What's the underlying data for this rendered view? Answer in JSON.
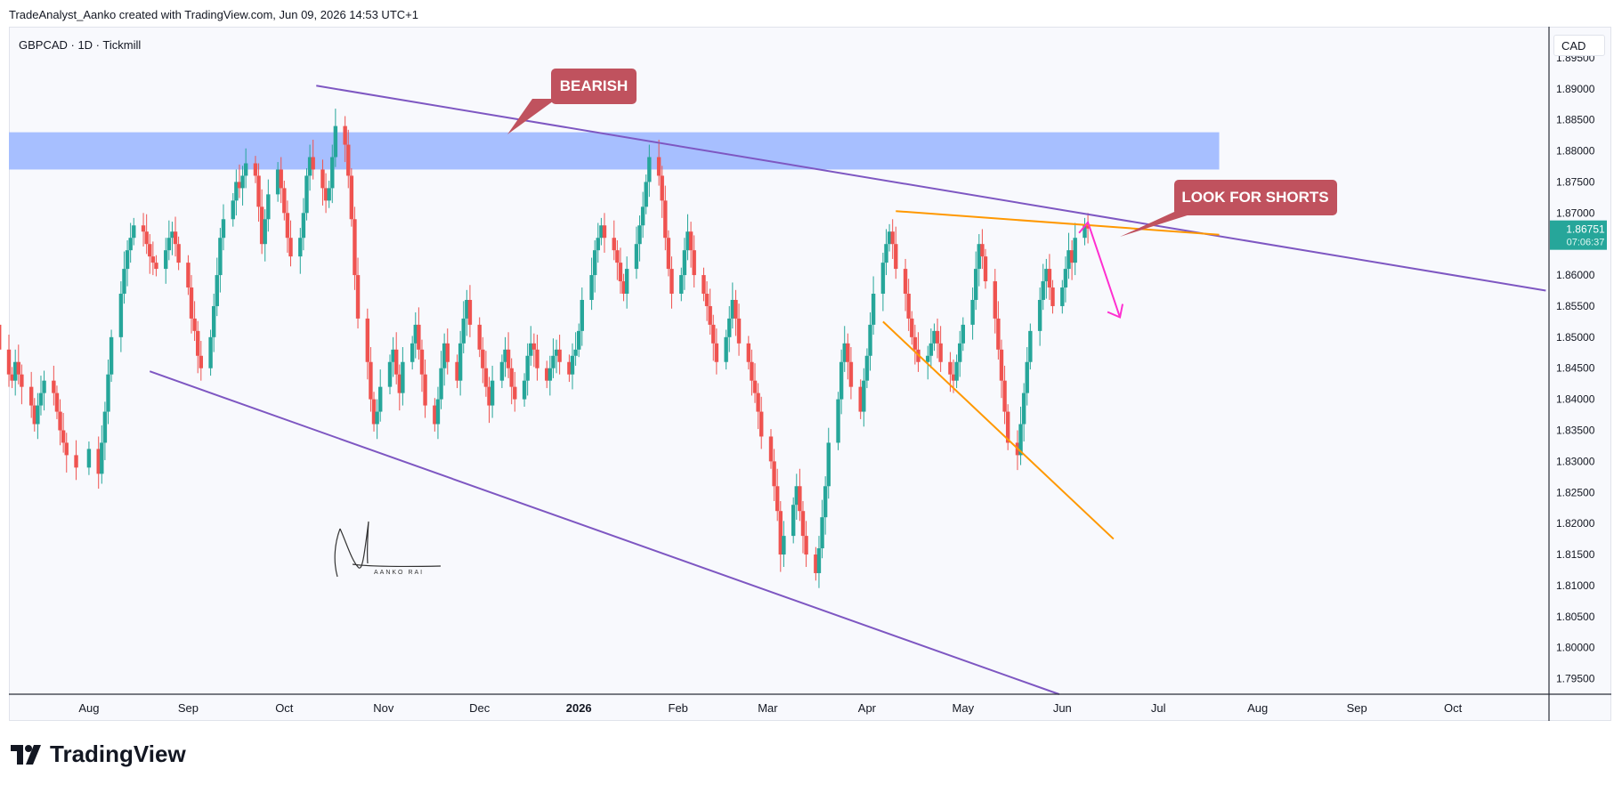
{
  "header": {
    "attribution": "TradeAnalyst_Aanko created with TradingView.com, Jun 09, 2026 14:53 UTC+1"
  },
  "symbol_line": "GBPCAD · 1D · Tickmill",
  "currency": "CAD",
  "last_price": {
    "value": "1.86751",
    "countdown": "07:06:37"
  },
  "annotations": {
    "bearish": "BEARISH",
    "look_for_shorts": "LOOK FOR SHORTS",
    "signature": "AANKO RAI"
  },
  "brand": {
    "name": "TradingView"
  },
  "colors": {
    "up": "#26a69a",
    "down": "#ef5350",
    "channel": "#7e57c2",
    "orange": "#ff9800",
    "zone": "#a7bfff",
    "label_bg": "#c0525e",
    "arrow": "#ff2fd0",
    "price_tag": "#26a69a"
  },
  "chart_data": {
    "type": "candlestick",
    "title": "GBPCAD · 1D · Tickmill",
    "ylim": [
      1.7925,
      1.9
    ],
    "y_ticks": [
      "1.89500",
      "1.89000",
      "1.88500",
      "1.88000",
      "1.87500",
      "1.87000",
      "1.86500",
      "1.86000",
      "1.85500",
      "1.85000",
      "1.84500",
      "1.84000",
      "1.83500",
      "1.83000",
      "1.82500",
      "1.82000",
      "1.81500",
      "1.81000",
      "1.80500",
      "1.80000",
      "1.79500"
    ],
    "x_ticks": [
      "Aug",
      "Sep",
      "Oct",
      "Nov",
      "Dec",
      "2026",
      "Feb",
      "Mar",
      "Apr",
      "May",
      "Jun",
      "Jul",
      "Aug",
      "Sep",
      "Oct"
    ],
    "x_start": "2025-07-07",
    "x_end": "2026-10-31",
    "resistance_zone": [
      1.877,
      1.883
    ],
    "last_price": 1.86751,
    "closes": [
      {
        "m": "2025-07",
        "v": [
          1.8595,
          1.857,
          1.852,
          1.848,
          1.844,
          1.843,
          1.846,
          1.844,
          1.842,
          1.839,
          1.836,
          1.839,
          1.841,
          1.843,
          1.841,
          1.838,
          1.835,
          1.833,
          1.831,
          1.829
        ]
      },
      {
        "m": "2025-08",
        "v": [
          1.832,
          1.828,
          1.833,
          1.838,
          1.844,
          1.85,
          1.857,
          1.861,
          1.864,
          1.866,
          1.868,
          1.867,
          1.865,
          1.863,
          1.862,
          1.861,
          1.864,
          1.866,
          1.867,
          1.865,
          1.862
        ]
      },
      {
        "m": "2025-09",
        "v": [
          1.858,
          1.853,
          1.851,
          1.847,
          1.845,
          1.85,
          1.855,
          1.86,
          1.866,
          1.869,
          1.872,
          1.875,
          1.874,
          1.876,
          1.878,
          1.876,
          1.871,
          1.865,
          1.869,
          1.873,
          1.877,
          1.874
        ]
      },
      {
        "m": "2025-10",
        "v": [
          1.87,
          1.866,
          1.863,
          1.866,
          1.87,
          1.876,
          1.879,
          1.877,
          1.874,
          1.872,
          1.874,
          1.879,
          1.884,
          1.881,
          1.876,
          1.869,
          1.86,
          1.853,
          1.846,
          1.84,
          1.836,
          1.838,
          1.842
        ]
      },
      {
        "m": "2025-11",
        "v": [
          1.846,
          1.848,
          1.844,
          1.841,
          1.846,
          1.849,
          1.852,
          1.848,
          1.844,
          1.839,
          1.836,
          1.84,
          1.845,
          1.849,
          1.846,
          1.843,
          1.849,
          1.853,
          1.856,
          1.852
        ]
      },
      {
        "m": "2025-12",
        "v": [
          1.848,
          1.845,
          1.842,
          1.839,
          1.843,
          1.846,
          1.848,
          1.845,
          1.842,
          1.84,
          1.843,
          1.847,
          1.849,
          1.848,
          1.845,
          1.843,
          1.845,
          1.847,
          1.848,
          1.846,
          1.844,
          1.847,
          1.848
        ]
      },
      {
        "m": "2026-01",
        "v": [
          1.851,
          1.856,
          1.86,
          1.864,
          1.866,
          1.868,
          1.866,
          1.864,
          1.862,
          1.859,
          1.857,
          1.861,
          1.865,
          1.868,
          1.871,
          1.875,
          1.879,
          1.876,
          1.872,
          1.866,
          1.861,
          1.857
        ]
      },
      {
        "m": "2026-02",
        "v": [
          1.86,
          1.864,
          1.867,
          1.864,
          1.86,
          1.857,
          1.855,
          1.852,
          1.849,
          1.846,
          1.85,
          1.853,
          1.856,
          1.853,
          1.849,
          1.846,
          1.843,
          1.841,
          1.838,
          1.834
        ]
      },
      {
        "m": "2026-03",
        "v": [
          1.83,
          1.826,
          1.822,
          1.815,
          1.818,
          1.823,
          1.826,
          1.822,
          1.818,
          1.815,
          1.812,
          1.816,
          1.821,
          1.826,
          1.833,
          1.84,
          1.846,
          1.849,
          1.846,
          1.842,
          1.838,
          1.843
        ]
      },
      {
        "m": "2026-04",
        "v": [
          1.847,
          1.852,
          1.857,
          1.862,
          1.865,
          1.867,
          1.865,
          1.861,
          1.857,
          1.853,
          1.85,
          1.848,
          1.846,
          1.847,
          1.849,
          1.851,
          1.849,
          1.846,
          1.844,
          1.843,
          1.846,
          1.849
        ]
      },
      {
        "m": "2026-05",
        "v": [
          1.852,
          1.856,
          1.861,
          1.865,
          1.863,
          1.859,
          1.853,
          1.848,
          1.843,
          1.838,
          1.833,
          1.831,
          1.836,
          1.841,
          1.846,
          1.851,
          1.856,
          1.859,
          1.861,
          1.858,
          1.855
        ]
      },
      {
        "m": "2026-06",
        "v": [
          1.858,
          1.861,
          1.864,
          1.862,
          1.866,
          1.868,
          1.8675
        ]
      }
    ],
    "trendlines": [
      {
        "name": "upper-channel",
        "p1": [
          "2025-10-11",
          1.8905
        ],
        "p2": [
          "2026-10-30",
          1.8575
        ]
      },
      {
        "name": "lower-channel",
        "p1": [
          "2025-08-20",
          1.8445
        ],
        "p2": [
          "2026-05-31",
          1.7925
        ]
      },
      {
        "name": "horizontal-resistance",
        "p1": [
          "2026-04-10",
          1.8703
        ],
        "p2": [
          "2026-07-20",
          1.8665
        ]
      },
      {
        "name": "wedge-support",
        "p1": [
          "2026-04-06",
          1.8525
        ],
        "p2": [
          "2026-06-17",
          1.8175
        ]
      }
    ],
    "projection": [
      [
        "2026-06-09",
        1.8685
      ],
      [
        "2026-06-19",
        1.8532
      ]
    ]
  }
}
